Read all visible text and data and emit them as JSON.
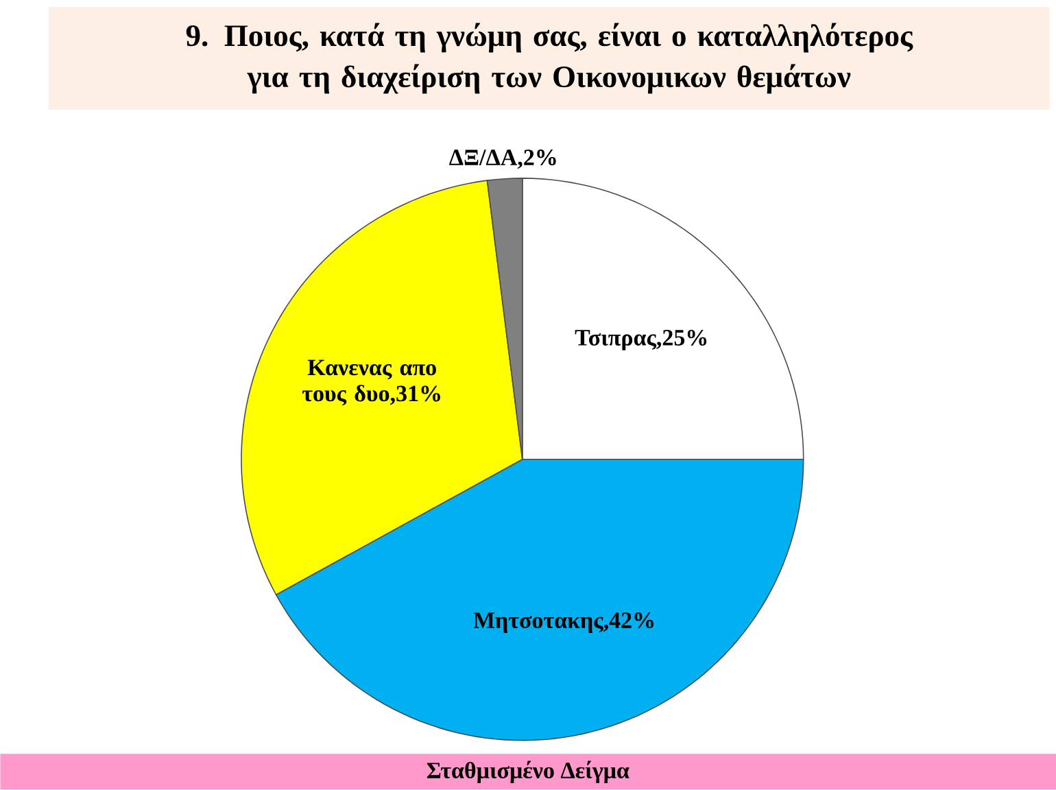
{
  "chart_data": {
    "type": "pie",
    "title": "9. Ποιος, κατά τη γνώμη σας, είναι ο καταλληλότερος για τη διαχείριση των Οικονομικων  θεμάτων",
    "categories": [
      "Τσιπρας",
      "Μητσοτακης",
      "Κανενας απο τους δυο",
      "ΔΞ/ΔΑ"
    ],
    "values": [
      25,
      42,
      31,
      2
    ],
    "value_labels": [
      ",25%",
      ",42%",
      ",31%",
      ",2%"
    ],
    "colors": [
      "#ffffff",
      "#00b0f0",
      "#ffff00",
      "#808080"
    ],
    "annotations": [
      "Σταθμισμένο Δείγμα"
    ]
  }
}
